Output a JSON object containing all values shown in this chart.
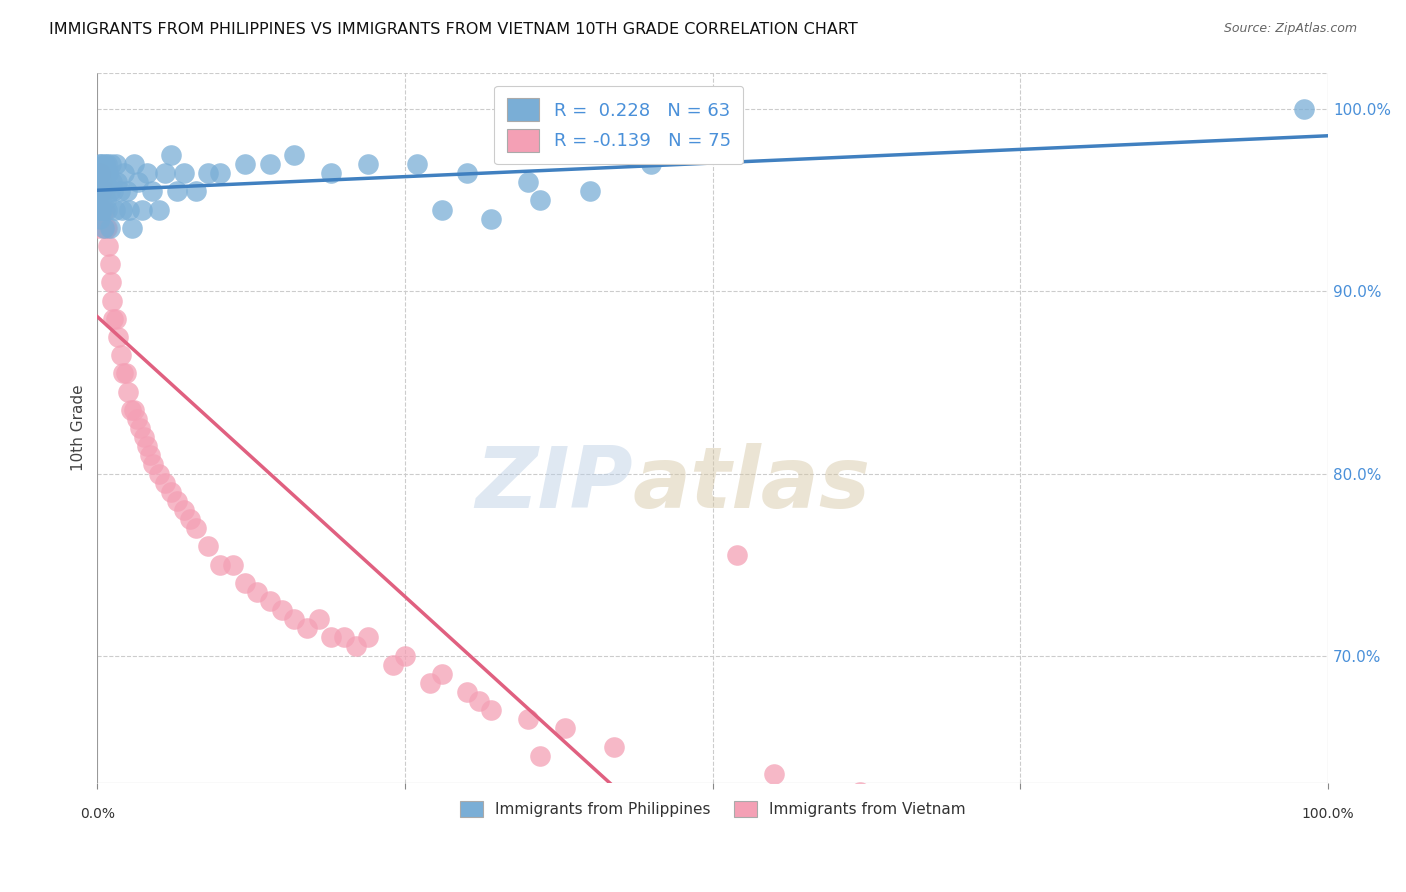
{
  "title": "IMMIGRANTS FROM PHILIPPINES VS IMMIGRANTS FROM VIETNAM 10TH GRADE CORRELATION CHART",
  "source": "Source: ZipAtlas.com",
  "ylabel": "10th Grade",
  "xlim": [
    0.0,
    1.0
  ],
  "ylim": [
    0.63,
    1.02
  ],
  "yticks": [
    0.7,
    0.8,
    0.9,
    1.0
  ],
  "ytick_labels": [
    "70.0%",
    "80.0%",
    "90.0%",
    "100.0%"
  ],
  "r_philippines": 0.228,
  "n_philippines": 63,
  "r_vietnam": -0.139,
  "n_vietnam": 75,
  "legend_label_philippines": "Immigrants from Philippines",
  "legend_label_vietnam": "Immigrants from Vietnam",
  "color_philippines": "#7aaed6",
  "color_vietnam": "#f4a0b5",
  "color_line_philippines": "#4080c0",
  "color_line_vietnam": "#e06080",
  "watermark_zip": "ZIP",
  "watermark_atlas": "atlas",
  "philippines_x": [
    0.0,
    0.001,
    0.001,
    0.002,
    0.002,
    0.002,
    0.003,
    0.003,
    0.003,
    0.004,
    0.004,
    0.004,
    0.005,
    0.005,
    0.005,
    0.006,
    0.006,
    0.007,
    0.007,
    0.008,
    0.008,
    0.009,
    0.01,
    0.01,
    0.011,
    0.012,
    0.013,
    0.014,
    0.015,
    0.016,
    0.018,
    0.02,
    0.022,
    0.024,
    0.026,
    0.028,
    0.03,
    0.033,
    0.036,
    0.04,
    0.044,
    0.05,
    0.055,
    0.06,
    0.065,
    0.07,
    0.08,
    0.09,
    0.1,
    0.12,
    0.14,
    0.16,
    0.19,
    0.22,
    0.26,
    0.3,
    0.35,
    0.4,
    0.45,
    0.32,
    0.28,
    0.36,
    0.98
  ],
  "philippines_y": [
    0.945,
    0.96,
    0.95,
    0.97,
    0.955,
    0.94,
    0.97,
    0.955,
    0.945,
    0.965,
    0.955,
    0.945,
    0.965,
    0.955,
    0.935,
    0.97,
    0.96,
    0.96,
    0.95,
    0.97,
    0.945,
    0.965,
    0.955,
    0.935,
    0.97,
    0.96,
    0.955,
    0.945,
    0.97,
    0.96,
    0.955,
    0.945,
    0.965,
    0.955,
    0.945,
    0.935,
    0.97,
    0.96,
    0.945,
    0.965,
    0.955,
    0.945,
    0.965,
    0.975,
    0.955,
    0.965,
    0.955,
    0.965,
    0.965,
    0.97,
    0.97,
    0.975,
    0.965,
    0.97,
    0.97,
    0.965,
    0.96,
    0.955,
    0.97,
    0.94,
    0.945,
    0.95,
    1.0
  ],
  "vietnam_x": [
    0.0,
    0.0,
    0.0,
    0.001,
    0.001,
    0.001,
    0.001,
    0.002,
    0.002,
    0.002,
    0.003,
    0.003,
    0.003,
    0.004,
    0.004,
    0.005,
    0.005,
    0.006,
    0.006,
    0.007,
    0.008,
    0.009,
    0.01,
    0.011,
    0.012,
    0.013,
    0.015,
    0.017,
    0.019,
    0.021,
    0.023,
    0.025,
    0.027,
    0.03,
    0.032,
    0.035,
    0.038,
    0.04,
    0.043,
    0.045,
    0.05,
    0.055,
    0.06,
    0.065,
    0.07,
    0.075,
    0.08,
    0.09,
    0.1,
    0.11,
    0.12,
    0.14,
    0.16,
    0.18,
    0.2,
    0.22,
    0.25,
    0.28,
    0.13,
    0.15,
    0.17,
    0.19,
    0.21,
    0.24,
    0.27,
    0.31,
    0.35,
    0.3,
    0.32,
    0.38,
    0.42,
    0.52,
    0.36,
    0.55,
    0.62
  ],
  "vietnam_y": [
    0.96,
    0.955,
    0.945,
    0.965,
    0.955,
    0.945,
    0.935,
    0.965,
    0.955,
    0.945,
    0.965,
    0.955,
    0.945,
    0.96,
    0.955,
    0.945,
    0.935,
    0.955,
    0.945,
    0.935,
    0.935,
    0.925,
    0.915,
    0.905,
    0.895,
    0.885,
    0.885,
    0.875,
    0.865,
    0.855,
    0.855,
    0.845,
    0.835,
    0.835,
    0.83,
    0.825,
    0.82,
    0.815,
    0.81,
    0.805,
    0.8,
    0.795,
    0.79,
    0.785,
    0.78,
    0.775,
    0.77,
    0.76,
    0.75,
    0.75,
    0.74,
    0.73,
    0.72,
    0.72,
    0.71,
    0.71,
    0.7,
    0.69,
    0.735,
    0.725,
    0.715,
    0.71,
    0.705,
    0.695,
    0.685,
    0.675,
    0.665,
    0.68,
    0.67,
    0.66,
    0.65,
    0.755,
    0.645,
    0.635,
    0.625
  ]
}
